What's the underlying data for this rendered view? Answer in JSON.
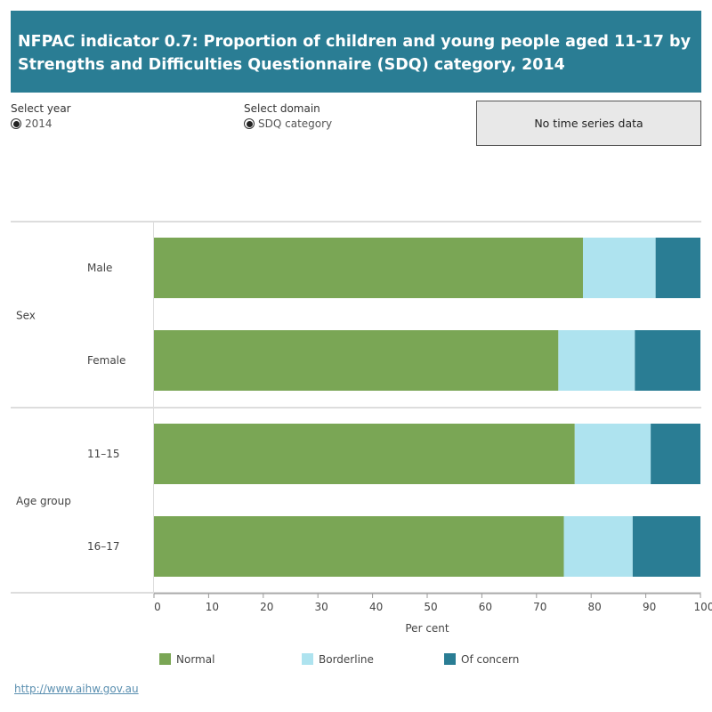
{
  "title": "NFPAC indicator 0.7: Proportion of children and young people aged 11-17 by Strengths and Difficulties Questionnaire (SDQ) category, 2014",
  "controls": {
    "year": {
      "label": "Select year",
      "selected": "2014"
    },
    "domain": {
      "label": "Select domain",
      "selected": "SDQ category"
    },
    "notice": "No time series data"
  },
  "footer_link": "http://www.aihw.gov.au",
  "colors": {
    "Normal": "#7aa655",
    "Borderline": "#aee3ef",
    "Of concern": "#2a7d94"
  },
  "chart_data": {
    "type": "bar",
    "orientation": "horizontal",
    "stacked": true,
    "groups": [
      {
        "name": "Sex",
        "categories": [
          "Male",
          "Female"
        ]
      },
      {
        "name": "Age group",
        "categories": [
          "11–15",
          "16–17"
        ]
      }
    ],
    "categories": [
      "Male",
      "Female",
      "11–15",
      "16–17"
    ],
    "series": [
      {
        "name": "Normal",
        "values": [
          78.5,
          74.0,
          77.0,
          75.0
        ]
      },
      {
        "name": "Borderline",
        "values": [
          13.3,
          14.0,
          13.9,
          12.6
        ]
      },
      {
        "name": "Of concern",
        "values": [
          8.2,
          12.0,
          9.1,
          12.4
        ]
      }
    ],
    "xlabel": "Per cent",
    "xlim": [
      0,
      100
    ],
    "xticks": [
      0,
      10,
      20,
      30,
      40,
      50,
      60,
      70,
      80,
      90,
      100
    ],
    "legend_position": "bottom",
    "grid": false
  }
}
